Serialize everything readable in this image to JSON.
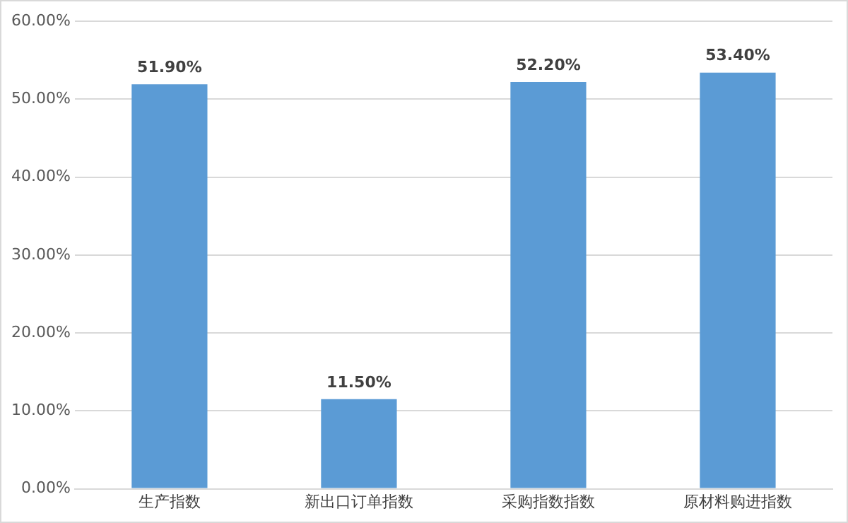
{
  "chart_data": {
    "type": "bar",
    "categories": [
      "生产指数",
      "新出口订单指数",
      "采购指数指数",
      "原材料购进指数"
    ],
    "values": [
      51.9,
      11.5,
      52.2,
      53.4
    ],
    "value_labels": [
      "51.90%",
      "11.50%",
      "52.20%",
      "53.40%"
    ],
    "color": "#5b9bd5",
    "ylim": [
      0,
      60
    ],
    "yticks": [
      {
        "value": 0,
        "label": "0.00%"
      },
      {
        "value": 10,
        "label": "10.00%"
      },
      {
        "value": 20,
        "label": "20.00%"
      },
      {
        "value": 30,
        "label": "30.00%"
      },
      {
        "value": 40,
        "label": "40.00%"
      },
      {
        "value": 50,
        "label": "50.00%"
      },
      {
        "value": 60,
        "label": "60.00%"
      }
    ],
    "grid": "y"
  }
}
